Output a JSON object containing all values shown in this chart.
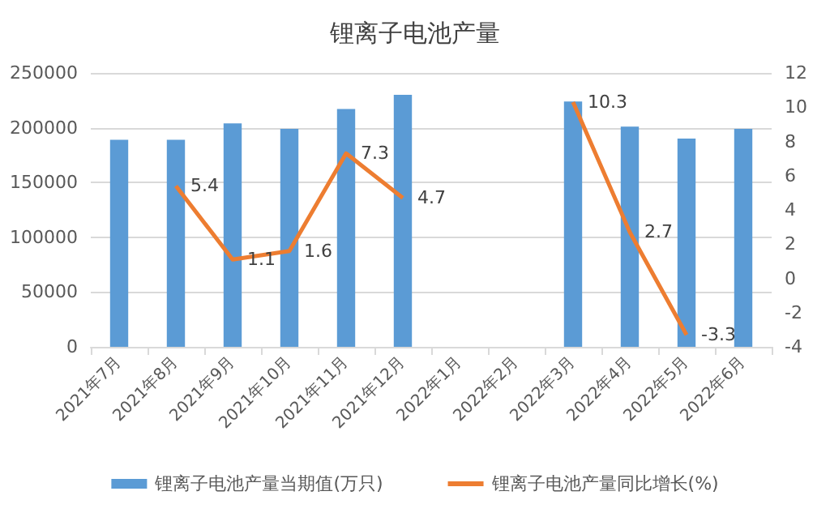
{
  "chart_data": {
    "type": "bar",
    "title": "锂离子电池产量",
    "categories": [
      "2021年7月",
      "2021年8月",
      "2021年9月",
      "2021年10月",
      "2021年11月",
      "2021年12月",
      "2022年1月",
      "2022年2月",
      "2022年3月",
      "2022年4月",
      "2022年5月",
      "2022年6月"
    ],
    "series": [
      {
        "name": "锂离子电池产量当期值(万只)",
        "color": "#5b9bd5",
        "values": [
          189000,
          189000,
          204000,
          199000,
          217000,
          230000,
          null,
          null,
          224000,
          201000,
          190000,
          199000
        ]
      },
      {
        "name": "锂离子电池产量同比增长(%)",
        "type": "line",
        "axis": "y2",
        "color": "#ed7d31",
        "values": [
          null,
          5.4,
          1.1,
          1.6,
          7.3,
          4.7,
          null,
          null,
          10.3,
          2.7,
          -3.3,
          null
        ],
        "value_labels": [
          null,
          "5.4",
          "1.1",
          "1.6",
          "7.3",
          "4.7",
          null,
          null,
          "10.3",
          "2.7",
          "-3.3",
          null
        ]
      }
    ],
    "ylim": [
      0,
      250000
    ],
    "yticks": [
      0,
      50000,
      100000,
      150000,
      200000,
      250000
    ],
    "y2lim": [
      -4,
      12
    ],
    "y2ticks": [
      -4,
      -2,
      0,
      2,
      4,
      6,
      8,
      10,
      12
    ],
    "grid": "y",
    "legend": "bottom",
    "marker": "none",
    "line_style": "solid"
  }
}
